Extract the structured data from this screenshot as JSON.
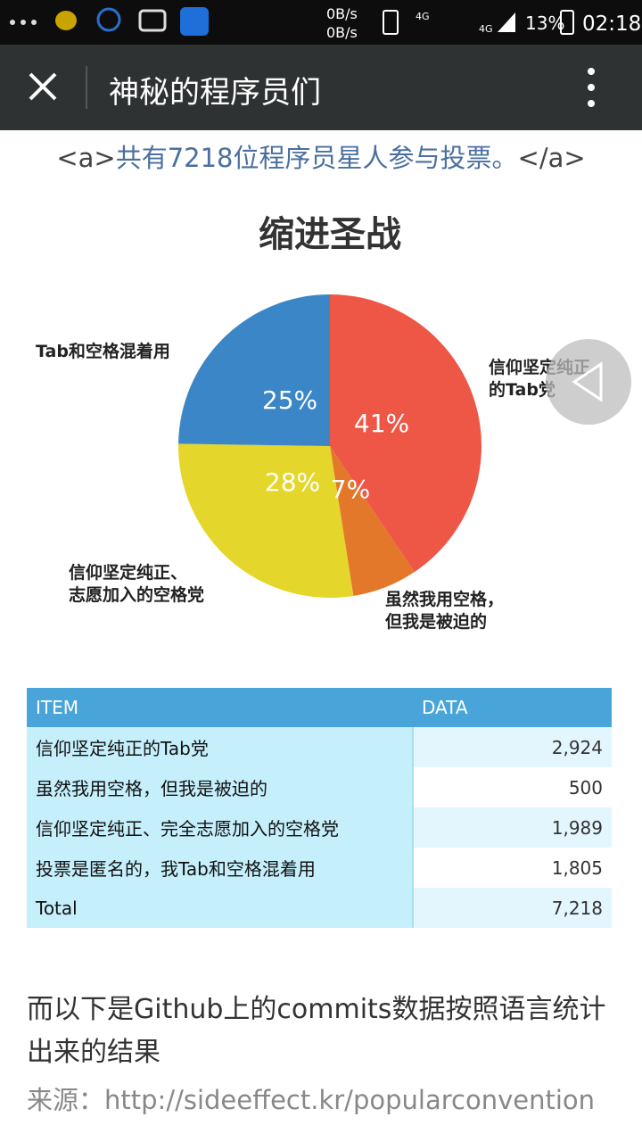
{
  "status_bar": {
    "net_up": "0B/s",
    "net_down": "0B/s",
    "sim1": "4G",
    "sim2": "4G",
    "battery": "13%",
    "time": "02:18"
  },
  "header": {
    "title": "神秘的程序员们"
  },
  "article": {
    "link": {
      "open": "<a>",
      "text": "共有7218位程序员星人参与投票。",
      "close": "</a>"
    },
    "chart_data": {
      "type": "pie",
      "title": "缩进圣战",
      "categories": [
        [
          "信仰坚定纯正",
          "的Tab党"
        ],
        [
          "虽然我用空格，",
          "但我是被迫的"
        ],
        [
          "信仰坚定纯正、",
          "志愿加入的空格党"
        ],
        [
          "Tab和空格混着用"
        ]
      ],
      "values": [
        41,
        7,
        28,
        25
      ],
      "value_labels": [
        "41%",
        "7%",
        "28%",
        "25%"
      ],
      "colors": [
        "#ee5646",
        "#e4782a",
        "#e5d62b",
        "#3b86c6"
      ]
    },
    "table": {
      "header": [
        "ITEM",
        "DATA"
      ],
      "rows": [
        [
          "信仰坚定纯正的Tab党",
          "2,924"
        ],
        [
          "虽然我用空格，但我是被迫的",
          "500"
        ],
        [
          "信仰坚定纯正、完全志愿加入的空格党",
          "1,989"
        ],
        [
          "投票是匿名的，我Tab和空格混着用",
          "1,805"
        ],
        [
          "Total",
          "7,218"
        ]
      ]
    },
    "paragraph": "而以下是Github上的commits数据按照语言统计出来的结果",
    "source": {
      "label": "来源：",
      "url": "http://sideeffect.kr/popularconvention"
    }
  }
}
